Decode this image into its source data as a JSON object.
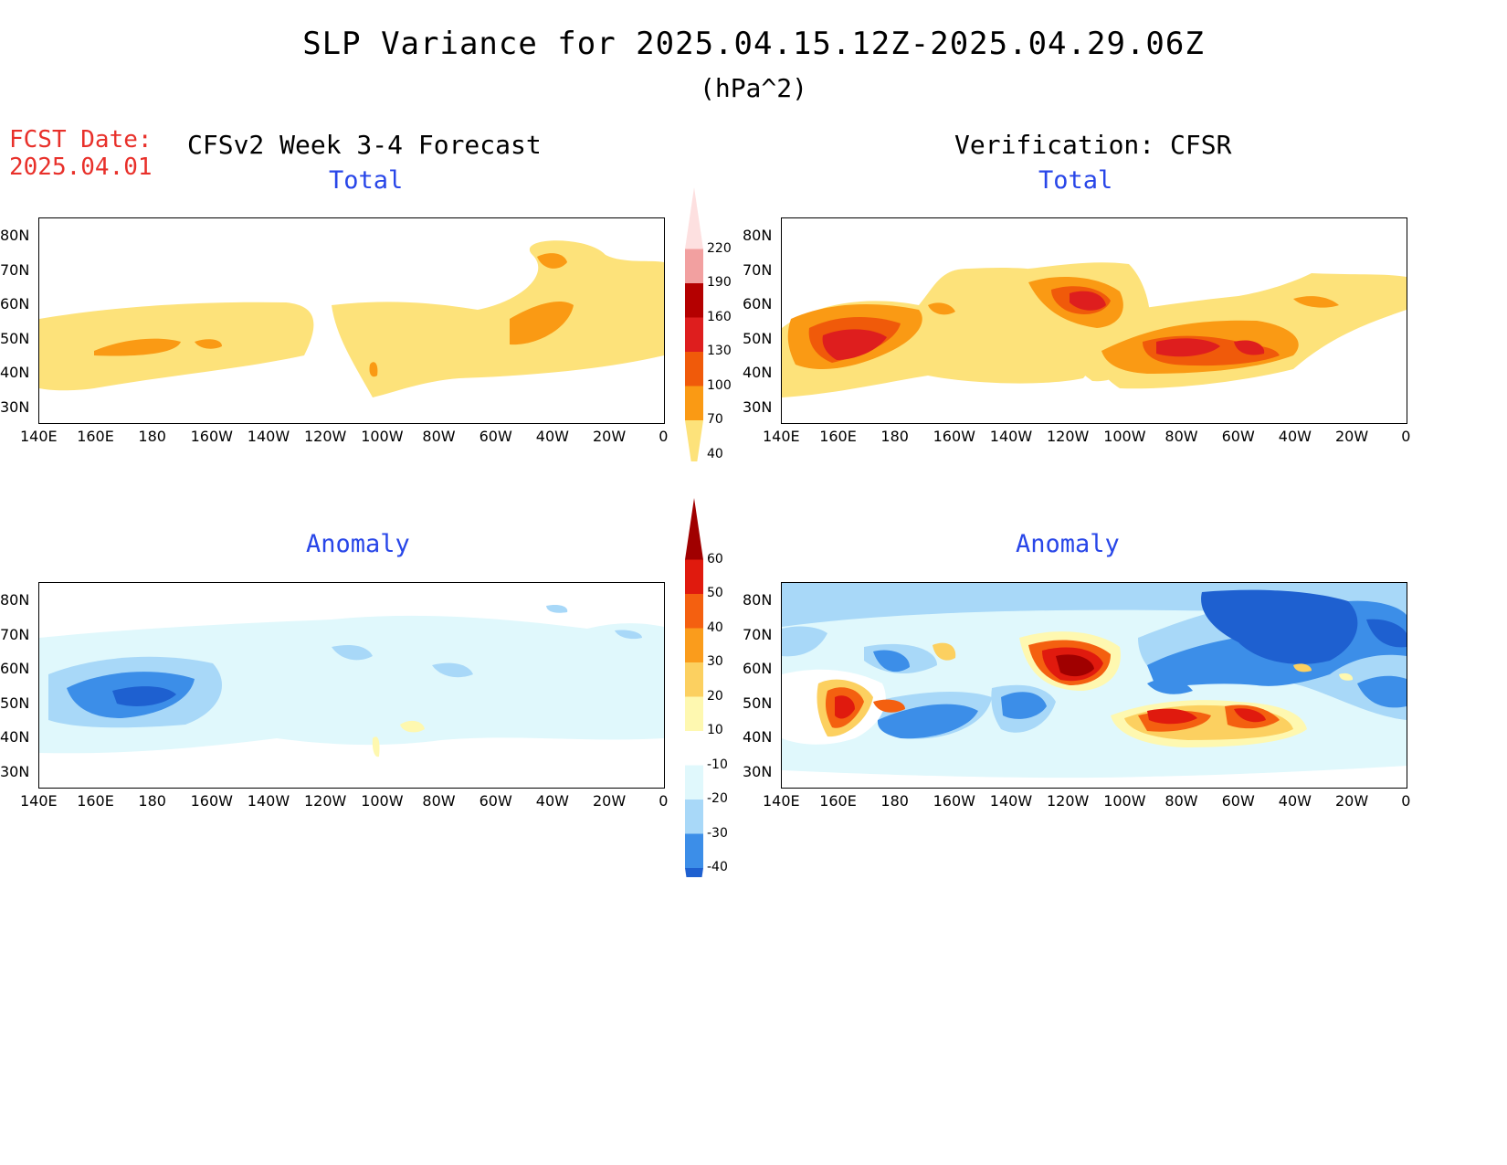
{
  "header": {
    "title": "SLP Variance for 2025.04.15.12Z-2025.04.29.06Z",
    "units": "(hPa^2)",
    "fcst_label": "FCST Date:",
    "fcst_date": "2025.04.01"
  },
  "columns": {
    "left": "CFSv2 Week 3-4 Forecast",
    "right": "Verification: CFSR"
  },
  "panels": {
    "fc_total": "Total",
    "vr_total": "Total",
    "fc_anom": "Anomaly",
    "vr_anom": "Anomaly"
  },
  "axes": {
    "lat_labels": [
      "80N",
      "70N",
      "60N",
      "50N",
      "40N",
      "30N"
    ],
    "lon_labels": [
      "140E",
      "160E",
      "180",
      "160W",
      "140W",
      "120W",
      "100W",
      "80W",
      "60W",
      "40W",
      "20W",
      "0"
    ]
  },
  "colorbar_total": {
    "labels": [
      "220",
      "190",
      "160",
      "130",
      "100",
      "70",
      "40"
    ],
    "colors": [
      "#fde0e0",
      "#f2a0a0",
      "#b40000",
      "#de1e1e",
      "#f05a0a",
      "#fa9a14",
      "#fde27a"
    ]
  },
  "colorbar_anom": {
    "labels": [
      "60",
      "50",
      "40",
      "30",
      "20",
      "10",
      "-10",
      "-20",
      "-30",
      "-40"
    ],
    "colors": [
      "#a00000",
      "#e01a0e",
      "#f46010",
      "#fa9c1c",
      "#fcd060",
      "#fef8b0",
      "#ffffff",
      "#e0f8fc",
      "#a8d8f8",
      "#3c8ee8",
      "#1e60d0"
    ]
  }
}
